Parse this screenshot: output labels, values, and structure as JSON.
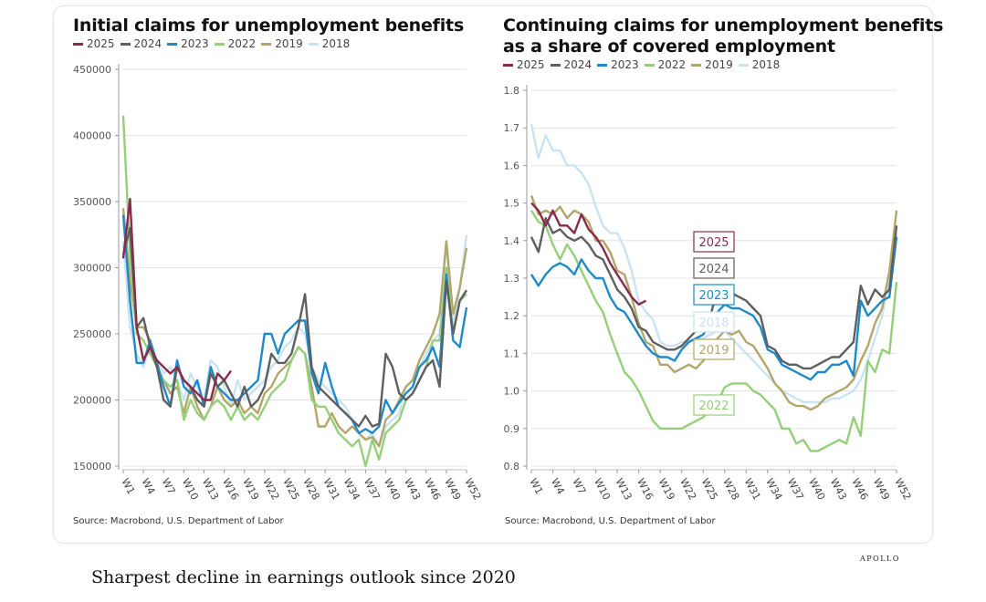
{
  "caption": "Sharpest decline in earnings outlook since 2020",
  "brand": "APOLLO",
  "colors": {
    "2025": "#8b2b4b",
    "2024": "#5f5f5f",
    "2023": "#1f8ac7",
    "2022": "#96cf7a",
    "2019": "#b2a66a",
    "2018": "#c9e3f3"
  },
  "chart_data": [
    {
      "type": "line",
      "title": "Initial claims for unemployment benefits",
      "source": "Source: Macrobond, U.S. Department of Labor",
      "legend": [
        "2025",
        "2024",
        "2023",
        "2022",
        "2019",
        "2018"
      ],
      "legend_position": "top-left",
      "ylim": [
        150000,
        450000
      ],
      "y_ticks": [
        "450000",
        "400000",
        "350000",
        "300000",
        "250000",
        "200000",
        "150000"
      ],
      "x_ticks": [
        "W1",
        "W4",
        "W7",
        "W10",
        "W13",
        "W16",
        "W19",
        "W22",
        "W25",
        "W28",
        "W31",
        "W34",
        "W37",
        "W40",
        "W43",
        "W46",
        "W49",
        "W52"
      ],
      "grid": true,
      "series": [
        {
          "name": "2018",
          "values": [
            320000,
            255000,
            235000,
            225000,
            240000,
            230000,
            220000,
            225000,
            215000,
            200000,
            220000,
            210000,
            200000,
            230000,
            225000,
            210000,
            195000,
            215000,
            200000,
            205000,
            210000,
            215000,
            225000,
            230000,
            240000,
            245000,
            255000,
            250000,
            225000,
            215000,
            210000,
            205000,
            200000,
            195000,
            185000,
            175000,
            170000,
            175000,
            165000,
            180000,
            185000,
            190000,
            210000,
            215000,
            225000,
            235000,
            245000,
            250000,
            320000,
            255000,
            285000,
            325000
          ]
        },
        {
          "name": "2019",
          "values": [
            345000,
            290000,
            255000,
            255000,
            245000,
            225000,
            215000,
            205000,
            210000,
            190000,
            210000,
            195000,
            185000,
            195000,
            210000,
            200000,
            195000,
            200000,
            190000,
            195000,
            190000,
            205000,
            210000,
            220000,
            225000,
            230000,
            240000,
            235000,
            210000,
            180000,
            180000,
            190000,
            180000,
            175000,
            180000,
            175000,
            170000,
            172000,
            165000,
            185000,
            190000,
            200000,
            210000,
            215000,
            230000,
            240000,
            250000,
            265000,
            320000,
            265000,
            285000,
            315000
          ]
        },
        {
          "name": "2022",
          "values": [
            415000,
            310000,
            250000,
            245000,
            235000,
            225000,
            215000,
            210000,
            215000,
            185000,
            200000,
            190000,
            185000,
            195000,
            200000,
            195000,
            185000,
            195000,
            185000,
            190000,
            185000,
            195000,
            205000,
            210000,
            215000,
            230000,
            240000,
            235000,
            200000,
            195000,
            195000,
            185000,
            175000,
            170000,
            165000,
            170000,
            150000,
            170000,
            155000,
            175000,
            180000,
            185000,
            200000,
            205000,
            215000,
            225000,
            245000,
            245000,
            300000,
            250000,
            275000,
            280000
          ]
        },
        {
          "name": "2023",
          "values": [
            340000,
            275000,
            228000,
            228000,
            245000,
            228000,
            210000,
            195000,
            230000,
            210000,
            205000,
            215000,
            195000,
            225000,
            210000,
            205000,
            200000,
            200000,
            205000,
            210000,
            215000,
            250000,
            250000,
            235000,
            250000,
            255000,
            260000,
            260000,
            220000,
            205000,
            228000,
            210000,
            195000,
            190000,
            185000,
            175000,
            178000,
            175000,
            180000,
            200000,
            190000,
            198000,
            205000,
            210000,
            225000,
            230000,
            240000,
            225000,
            295000,
            245000,
            240000,
            270000
          ]
        },
        {
          "name": "2024",
          "values": [
            310000,
            330000,
            255000,
            262000,
            240000,
            225000,
            200000,
            195000,
            225000,
            215000,
            210000,
            200000,
            195000,
            220000,
            210000,
            215000,
            205000,
            195000,
            210000,
            195000,
            200000,
            210000,
            235000,
            228000,
            228000,
            235000,
            255000,
            280000,
            225000,
            210000,
            205000,
            200000,
            195000,
            190000,
            185000,
            180000,
            188000,
            180000,
            182000,
            235000,
            225000,
            205000,
            200000,
            205000,
            215000,
            225000,
            230000,
            210000,
            290000,
            250000,
            275000,
            283000
          ]
        },
        {
          "name": "2025",
          "values": [
            307000,
            352000,
            255000,
            230000,
            240000,
            230000,
            225000,
            220000,
            225000,
            215000,
            210000,
            205000,
            200000,
            200000,
            220000,
            215000,
            222000
          ]
        }
      ]
    },
    {
      "type": "line",
      "title": "Continuing claims for unemployment benefits as a share of covered employment",
      "title_lines": [
        "Continuing claims for unemployment benefits",
        "as a share of covered employment"
      ],
      "source": "Source: Macrobond, U.S. Department of Labor",
      "legend": [
        "2025",
        "2024",
        "2023",
        "2022",
        "2019",
        "2018"
      ],
      "legend_position": "top-left",
      "ylim": [
        0.8,
        1.8
      ],
      "y_ticks": [
        "1.8",
        "1.7",
        "1.6",
        "1.5",
        "1.4",
        "1.3",
        "1.2",
        "1.1",
        "1.0",
        "0.9",
        "0.8"
      ],
      "x_ticks": [
        "W1",
        "W4",
        "W7",
        "W10",
        "W13",
        "W16",
        "W19",
        "W22",
        "W25",
        "W28",
        "W31",
        "W34",
        "W37",
        "W40",
        "W43",
        "W46",
        "W49",
        "W52"
      ],
      "grid": true,
      "series": [
        {
          "name": "2018",
          "values": [
            1.71,
            1.62,
            1.68,
            1.64,
            1.64,
            1.6,
            1.6,
            1.58,
            1.55,
            1.49,
            1.44,
            1.42,
            1.42,
            1.38,
            1.32,
            1.24,
            1.21,
            1.19,
            1.13,
            1.12,
            1.12,
            1.13,
            1.13,
            1.14,
            1.14,
            1.15,
            1.16,
            1.16,
            1.14,
            1.12,
            1.1,
            1.08,
            1.06,
            1.04,
            1.02,
            1.0,
            0.99,
            0.98,
            0.97,
            0.97,
            0.97,
            0.97,
            0.98,
            0.98,
            0.99,
            1.0,
            1.03,
            1.08,
            1.14,
            1.2,
            1.3,
            1.42
          ]
        },
        {
          "name": "2019",
          "values": [
            1.52,
            1.47,
            1.48,
            1.47,
            1.49,
            1.46,
            1.48,
            1.47,
            1.45,
            1.4,
            1.4,
            1.37,
            1.32,
            1.31,
            1.25,
            1.18,
            1.13,
            1.12,
            1.07,
            1.07,
            1.05,
            1.06,
            1.07,
            1.06,
            1.08,
            1.1,
            1.14,
            1.16,
            1.15,
            1.16,
            1.13,
            1.12,
            1.09,
            1.06,
            1.02,
            1.0,
            0.97,
            0.96,
            0.96,
            0.95,
            0.96,
            0.98,
            0.99,
            1.0,
            1.01,
            1.03,
            1.08,
            1.12,
            1.18,
            1.22,
            1.32,
            1.48
          ]
        },
        {
          "name": "2022",
          "values": [
            1.48,
            1.45,
            1.44,
            1.39,
            1.35,
            1.39,
            1.36,
            1.32,
            1.28,
            1.24,
            1.21,
            1.15,
            1.1,
            1.05,
            1.03,
            1.0,
            0.96,
            0.92,
            0.9,
            0.9,
            0.9,
            0.9,
            0.91,
            0.92,
            0.93,
            0.95,
            0.97,
            1.01,
            1.02,
            1.02,
            1.02,
            1.0,
            0.99,
            0.97,
            0.95,
            0.9,
            0.9,
            0.86,
            0.87,
            0.84,
            0.84,
            0.85,
            0.86,
            0.87,
            0.86,
            0.93,
            0.88,
            1.08,
            1.05,
            1.11,
            1.1,
            1.29
          ]
        },
        {
          "name": "2023",
          "values": [
            1.31,
            1.28,
            1.31,
            1.33,
            1.34,
            1.33,
            1.31,
            1.35,
            1.32,
            1.3,
            1.3,
            1.25,
            1.22,
            1.21,
            1.18,
            1.15,
            1.12,
            1.1,
            1.09,
            1.09,
            1.08,
            1.11,
            1.13,
            1.14,
            1.15,
            1.18,
            1.21,
            1.23,
            1.22,
            1.22,
            1.21,
            1.2,
            1.17,
            1.11,
            1.1,
            1.07,
            1.06,
            1.05,
            1.04,
            1.03,
            1.05,
            1.05,
            1.07,
            1.07,
            1.08,
            1.04,
            1.24,
            1.2,
            1.22,
            1.24,
            1.25,
            1.41
          ]
        },
        {
          "name": "2024",
          "values": [
            1.41,
            1.37,
            1.46,
            1.42,
            1.43,
            1.41,
            1.4,
            1.41,
            1.39,
            1.36,
            1.35,
            1.31,
            1.27,
            1.25,
            1.22,
            1.17,
            1.16,
            1.13,
            1.12,
            1.11,
            1.11,
            1.12,
            1.14,
            1.16,
            1.17,
            1.2,
            1.27,
            1.28,
            1.26,
            1.25,
            1.24,
            1.22,
            1.2,
            1.12,
            1.11,
            1.08,
            1.07,
            1.07,
            1.06,
            1.06,
            1.07,
            1.08,
            1.09,
            1.09,
            1.11,
            1.13,
            1.28,
            1.23,
            1.27,
            1.25,
            1.27,
            1.44
          ]
        },
        {
          "name": "2025",
          "values": [
            1.5,
            1.48,
            1.44,
            1.48,
            1.44,
            1.44,
            1.42,
            1.47,
            1.43,
            1.41,
            1.38,
            1.34,
            1.31,
            1.28,
            1.25,
            1.23,
            1.24
          ]
        }
      ],
      "annotations": [
        {
          "text": "2025",
          "series": "2025"
        },
        {
          "text": "2024",
          "series": "2024"
        },
        {
          "text": "2023",
          "series": "2023"
        },
        {
          "text": "2018",
          "series": "2018"
        },
        {
          "text": "2019",
          "series": "2019"
        },
        {
          "text": "2022",
          "series": "2022"
        }
      ]
    }
  ]
}
